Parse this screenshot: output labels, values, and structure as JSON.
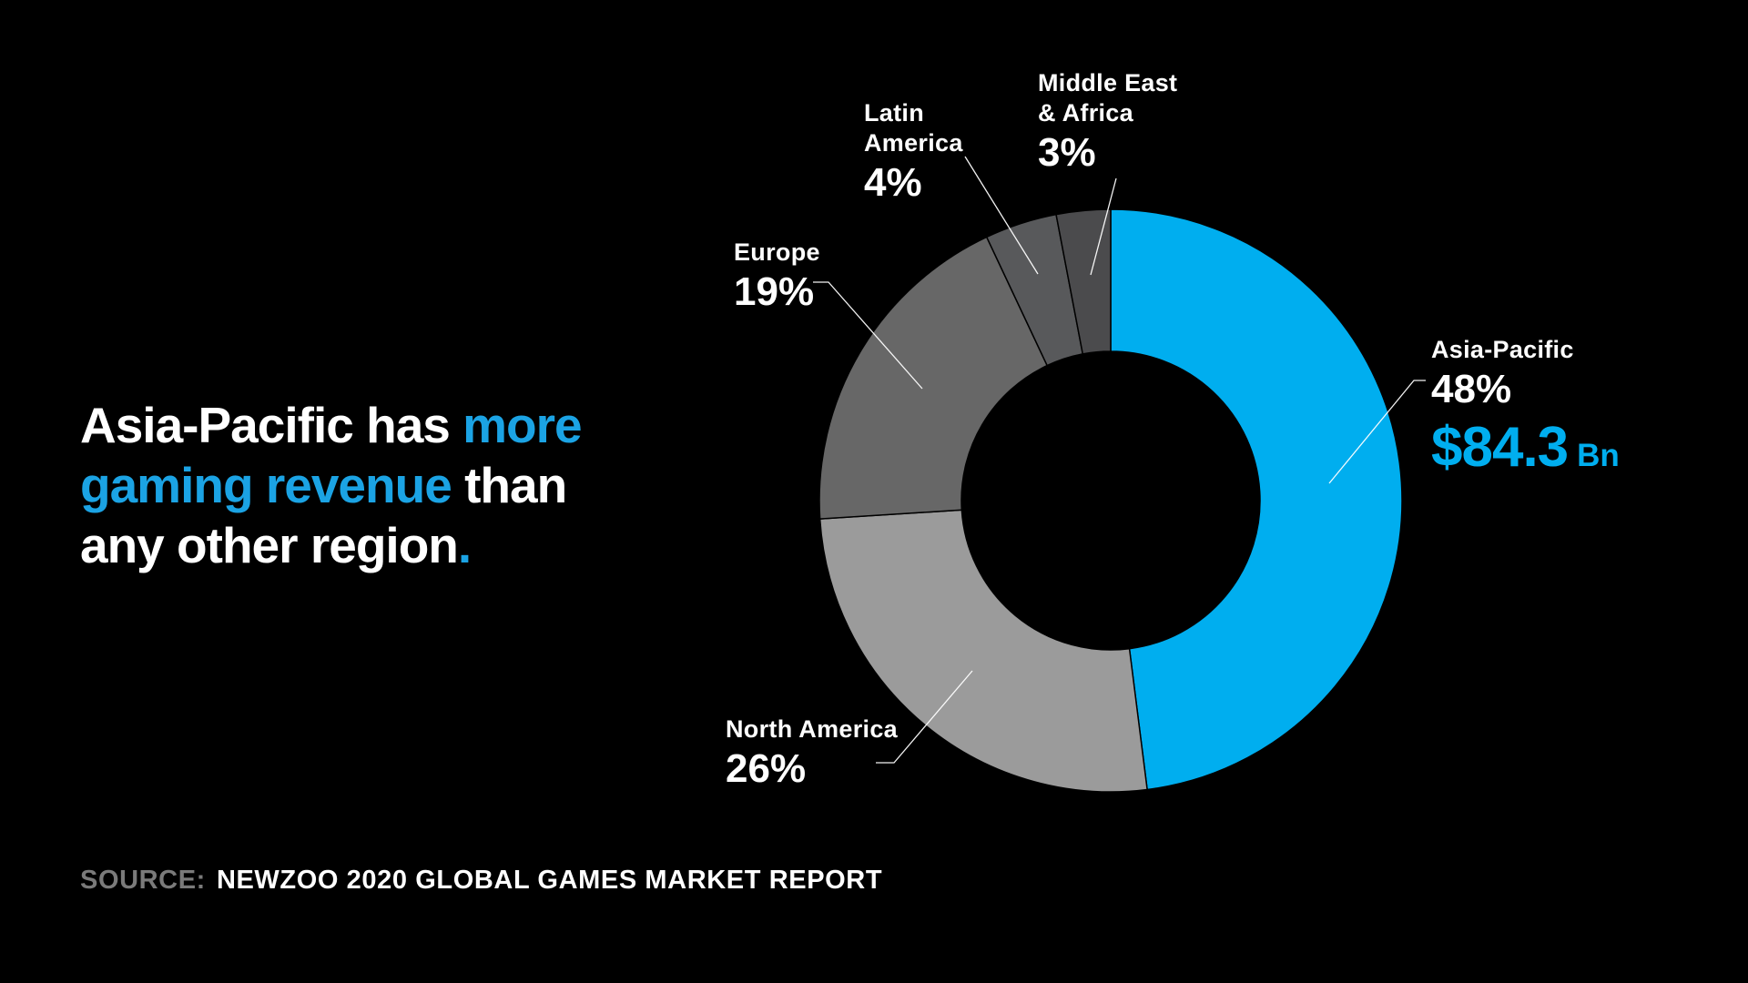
{
  "headline": {
    "full_text": "Asia-Pacific has more gaming revenue than any other region.",
    "lines": [
      [
        {
          "text": "Asia-Pacific has ",
          "accent": false
        },
        {
          "text": "more",
          "accent": true
        }
      ],
      [
        {
          "text": "gaming revenue",
          "accent": true
        },
        {
          "text": " than",
          "accent": false
        }
      ],
      [
        {
          "text": "any other region",
          "accent": false
        },
        {
          "text": ".",
          "accent": true
        }
      ]
    ]
  },
  "source": {
    "prefix": "SOURCE:",
    "text": "NEWZOO 2020 GLOBAL GAMES MARKET REPORT"
  },
  "colors": {
    "background": "#000000",
    "accent_blue": "#1BA3E4",
    "chart_blue": "#00AEEF",
    "source_prefix_gray": "#7A7A7A",
    "leader_line": "#FFFFFF"
  },
  "chart_data": {
    "type": "pie",
    "variant": "donut",
    "title": "Asia-Pacific has more gaming revenue than any other region.",
    "start_angle_deg": 0,
    "direction": "clockwise",
    "inner_radius_ratio": 0.51,
    "legend_position": "none",
    "slices": [
      {
        "label": "Asia-Pacific",
        "label_lines": [
          "Asia-Pacific"
        ],
        "value": 48,
        "pct_label": "48%",
        "amount_label": "$84.3",
        "unit_label": "Bn",
        "color": "#00AEEF"
      },
      {
        "label": "North America",
        "label_lines": [
          "North America"
        ],
        "value": 26,
        "pct_label": "26%",
        "color": "#9B9B9B"
      },
      {
        "label": "Europe",
        "label_lines": [
          "Europe"
        ],
        "value": 19,
        "pct_label": "19%",
        "color": "#676767"
      },
      {
        "label": "Latin America",
        "label_lines": [
          "Latin",
          "America"
        ],
        "value": 4,
        "pct_label": "4%",
        "color": "#58595B"
      },
      {
        "label": "Middle East & Africa",
        "label_lines": [
          "Middle East",
          "& Africa"
        ],
        "value": 3,
        "pct_label": "3%",
        "color": "#4B4B4D"
      }
    ]
  }
}
